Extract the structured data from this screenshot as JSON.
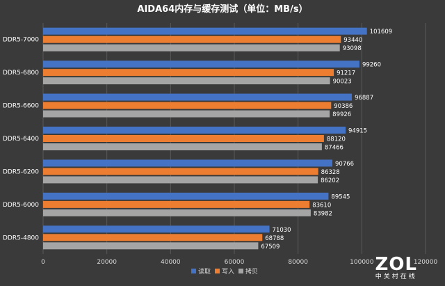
{
  "chart_data": {
    "type": "bar",
    "orientation": "horizontal",
    "title": "AIDA64内存与缓存测试（单位：MB/s）",
    "categories": [
      "DDR5-7000",
      "DDR5-6800",
      "DDR5-6600",
      "DDR5-6400",
      "DDR5-6200",
      "DDR5-6000",
      "DDR5-4800"
    ],
    "series": [
      {
        "name": "读取",
        "color": "#4472c4",
        "values": [
          101609,
          99260,
          96887,
          94915,
          90766,
          89545,
          71030
        ]
      },
      {
        "name": "写入",
        "color": "#ed7d31",
        "values": [
          93440,
          91217,
          90386,
          88120,
          86328,
          83610,
          68788
        ]
      },
      {
        "name": "拷贝",
        "color": "#a5a5a5",
        "values": [
          93098,
          90023,
          89926,
          87466,
          86202,
          83982,
          67509
        ]
      }
    ],
    "xlim": [
      0,
      120000
    ],
    "xticks": [
      0,
      20000,
      40000,
      60000,
      80000,
      100000,
      120000
    ],
    "grid": true,
    "legend_position": "bottom"
  },
  "watermark": {
    "logo": "ZOL",
    "sub": "中关村在线"
  }
}
